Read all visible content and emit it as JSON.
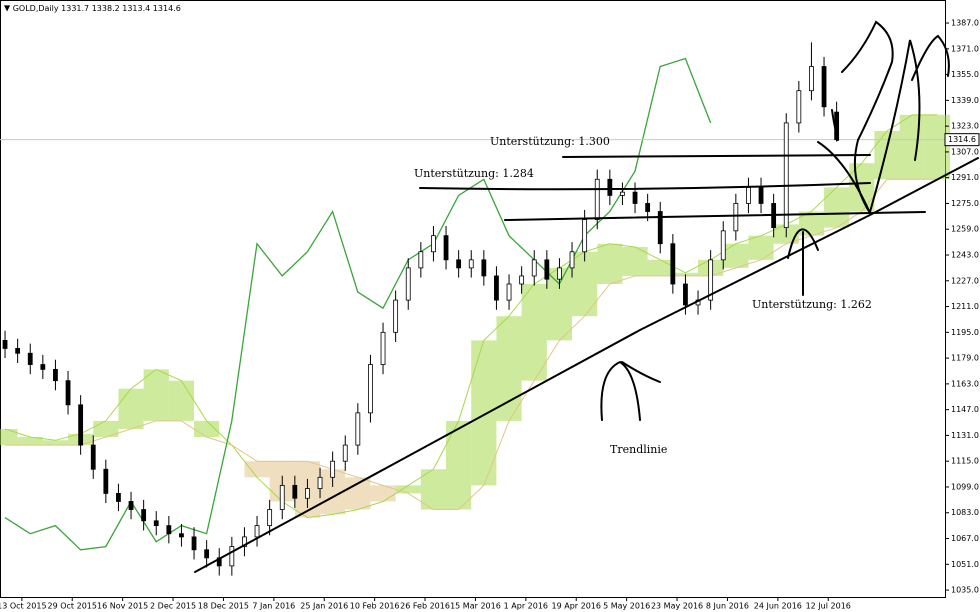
{
  "chart_data": {
    "type": "candlestick",
    "symbol": "GOLD,Daily",
    "xlim": [
      -1.2,
      223.8
    ],
    "ylim": [
      1030.7,
      1401.3
    ],
    "yticks": [
      {
        "value": 1035,
        "label": "1035.0"
      },
      {
        "value": 1051,
        "label": "1051.0"
      },
      {
        "value": 1067,
        "label": "1067.0"
      },
      {
        "value": 1083,
        "label": "1083.0"
      },
      {
        "value": 1099,
        "label": "1099.0"
      },
      {
        "value": 1115,
        "label": "1115.0"
      },
      {
        "value": 1131,
        "label": "1131.0"
      },
      {
        "value": 1147,
        "label": "1147.0"
      },
      {
        "value": 1163,
        "label": "1163.0"
      },
      {
        "value": 1179,
        "label": "1179.0"
      },
      {
        "value": 1195,
        "label": "1195.0"
      },
      {
        "value": 1211,
        "label": "1211.0"
      },
      {
        "value": 1227,
        "label": "1227.0"
      },
      {
        "value": 1243,
        "label": "1243.0"
      },
      {
        "value": 1259,
        "label": "1259.0"
      },
      {
        "value": 1275,
        "label": "1275.0"
      },
      {
        "value": 1291,
        "label": "1291.0"
      },
      {
        "value": 1307,
        "label": "1307.0"
      },
      {
        "value": 1323,
        "label": "1323.0"
      },
      {
        "value": 1339,
        "label": "1339.0"
      },
      {
        "value": 1355,
        "label": "1355.0"
      },
      {
        "value": 1371,
        "label": "1371.0"
      },
      {
        "value": 1387,
        "label": "1387.0"
      }
    ],
    "xticks": [
      {
        "value": 4,
        "label": "13 Oct 2015"
      },
      {
        "value": 16,
        "label": "29 Oct 2015"
      },
      {
        "value": 28,
        "label": "16 Nov 2015"
      },
      {
        "value": 40,
        "label": "2 Dec 2015"
      },
      {
        "value": 52,
        "label": "18 Dec 2015"
      },
      {
        "value": 64,
        "label": "7 Jan 2016"
      },
      {
        "value": 76,
        "label": "25 Jan 2016"
      },
      {
        "value": 88,
        "label": "10 Feb 2016"
      },
      {
        "value": 100,
        "label": "26 Feb 2016"
      },
      {
        "value": 112,
        "label": "15 Mar 2016"
      },
      {
        "value": 124,
        "label": "1 Apr 2016"
      },
      {
        "value": 136,
        "label": "19 Apr 2016"
      },
      {
        "value": 148,
        "label": "5 May 2016"
      },
      {
        "value": 160,
        "label": "23 May 2016"
      },
      {
        "value": 172,
        "label": "8 Jun 2016"
      },
      {
        "value": 184,
        "label": "24 Jun 2016"
      },
      {
        "value": 196,
        "label": "12 Jul 2016"
      }
    ],
    "x": [
      0,
      3,
      6,
      9,
      12,
      15,
      18,
      21,
      24,
      27,
      30,
      33,
      36,
      39,
      42,
      45,
      48,
      51,
      54,
      57,
      60,
      63,
      66,
      69,
      72,
      75,
      78,
      81,
      84,
      87,
      90,
      93,
      96,
      99,
      102,
      105,
      108,
      111,
      114,
      117,
      120,
      123,
      126,
      129,
      132,
      135,
      138,
      141,
      144,
      147,
      150,
      153,
      156,
      159,
      162,
      165,
      168,
      171,
      174,
      177,
      180,
      183,
      186,
      189,
      192,
      195,
      198
    ],
    "open": [
      1190,
      1185,
      1182,
      1175,
      1172,
      1165,
      1150,
      1125,
      1110,
      1095,
      1090,
      1085,
      1078,
      1075,
      1070,
      1068,
      1060,
      1055,
      1050,
      1062,
      1068,
      1075,
      1085,
      1100,
      1092,
      1098,
      1105,
      1115,
      1125,
      1145,
      1175,
      1195,
      1215,
      1235,
      1245,
      1255,
      1240,
      1235,
      1240,
      1230,
      1215,
      1225,
      1230,
      1240,
      1228,
      1235,
      1245,
      1265,
      1290,
      1280,
      1282,
      1275,
      1270,
      1250,
      1225,
      1212,
      1215,
      1240,
      1258,
      1275,
      1285,
      1275,
      1260,
      1325,
      1345,
      1360,
      1331.7
    ],
    "high": [
      1196,
      1191,
      1188,
      1181,
      1178,
      1171,
      1156,
      1131,
      1116,
      1101,
      1096,
      1091,
      1084,
      1081,
      1076,
      1074,
      1066,
      1061,
      1068,
      1074,
      1081,
      1091,
      1106,
      1106,
      1104,
      1111,
      1121,
      1131,
      1151,
      1181,
      1201,
      1221,
      1241,
      1251,
      1261,
      1261,
      1246,
      1246,
      1246,
      1236,
      1231,
      1236,
      1246,
      1246,
      1241,
      1251,
      1271,
      1296,
      1296,
      1288,
      1288,
      1281,
      1276,
      1256,
      1231,
      1221,
      1246,
      1264,
      1281,
      1291,
      1291,
      1281,
      1331,
      1351,
      1375,
      1366,
      1338.2
    ],
    "low": [
      1179,
      1176,
      1169,
      1166,
      1159,
      1144,
      1119,
      1104,
      1089,
      1084,
      1079,
      1072,
      1069,
      1064,
      1062,
      1054,
      1049,
      1044,
      1044,
      1056,
      1062,
      1069,
      1079,
      1086,
      1086,
      1092,
      1099,
      1109,
      1119,
      1139,
      1169,
      1189,
      1209,
      1229,
      1239,
      1234,
      1229,
      1229,
      1224,
      1209,
      1209,
      1219,
      1224,
      1222,
      1222,
      1229,
      1239,
      1259,
      1274,
      1274,
      1269,
      1264,
      1244,
      1219,
      1206,
      1206,
      1209,
      1234,
      1252,
      1269,
      1269,
      1254,
      1254,
      1319,
      1339,
      1329,
      1313.4
    ],
    "close": [
      1185,
      1182,
      1175,
      1172,
      1165,
      1150,
      1125,
      1110,
      1095,
      1090,
      1085,
      1078,
      1075,
      1070,
      1068,
      1060,
      1055,
      1050,
      1062,
      1068,
      1075,
      1085,
      1100,
      1092,
      1098,
      1105,
      1115,
      1125,
      1145,
      1175,
      1195,
      1215,
      1235,
      1245,
      1255,
      1240,
      1235,
      1240,
      1230,
      1215,
      1225,
      1230,
      1240,
      1228,
      1235,
      1245,
      1265,
      1290,
      1280,
      1282,
      1275,
      1270,
      1250,
      1225,
      1212,
      1215,
      1240,
      1258,
      1275,
      1285,
      1275,
      1260,
      1325,
      1345,
      1360,
      1335,
      1314.6
    ],
    "chikou": {
      "color": "#3aa53a",
      "x": [
        0,
        6,
        12,
        18,
        24,
        30,
        36,
        42,
        48,
        54,
        60,
        66,
        72,
        78,
        84,
        90,
        96,
        102,
        108,
        114,
        120,
        126,
        132,
        138,
        144,
        150,
        156,
        162,
        168
      ],
      "values": [
        1080,
        1070,
        1075,
        1060,
        1062,
        1090,
        1065,
        1075,
        1070,
        1140,
        1250,
        1230,
        1245,
        1270,
        1220,
        1210,
        1240,
        1250,
        1280,
        1290,
        1255,
        1240,
        1225,
        1255,
        1270,
        1295,
        1360,
        1365,
        1325
      ]
    },
    "cloud": {
      "bull_color": "#a6d84a",
      "bear_color": "#e3c48a",
      "x": [
        0,
        6,
        12,
        18,
        24,
        30,
        36,
        42,
        48,
        54,
        60,
        66,
        72,
        78,
        84,
        90,
        96,
        102,
        108,
        114,
        120,
        126,
        132,
        138,
        144,
        150,
        156,
        162,
        168,
        174,
        180,
        186,
        192,
        198,
        204,
        210,
        216,
        222
      ],
      "span_a": [
        1135,
        1130,
        1128,
        1132,
        1140,
        1160,
        1172,
        1165,
        1140,
        1125,
        1105,
        1090,
        1080,
        1082,
        1085,
        1090,
        1100,
        1110,
        1140,
        1190,
        1205,
        1225,
        1235,
        1245,
        1250,
        1248,
        1240,
        1232,
        1240,
        1250,
        1255,
        1262,
        1270,
        1285,
        1300,
        1320,
        1330,
        1330
      ],
      "span_b": [
        1125,
        1125,
        1125,
        1125,
        1130,
        1135,
        1140,
        1140,
        1130,
        1125,
        1115,
        1115,
        1115,
        1110,
        1105,
        1100,
        1095,
        1085,
        1085,
        1100,
        1140,
        1165,
        1190,
        1205,
        1225,
        1230,
        1230,
        1230,
        1230,
        1235,
        1240,
        1250,
        1255,
        1260,
        1270,
        1290,
        1290,
        1290
      ]
    },
    "annotations": [
      "Unterstützung: 1.300",
      "Unterstützung: 1.284",
      "Unterstützung: 1.262",
      "Trendlinie"
    ]
  }
}
